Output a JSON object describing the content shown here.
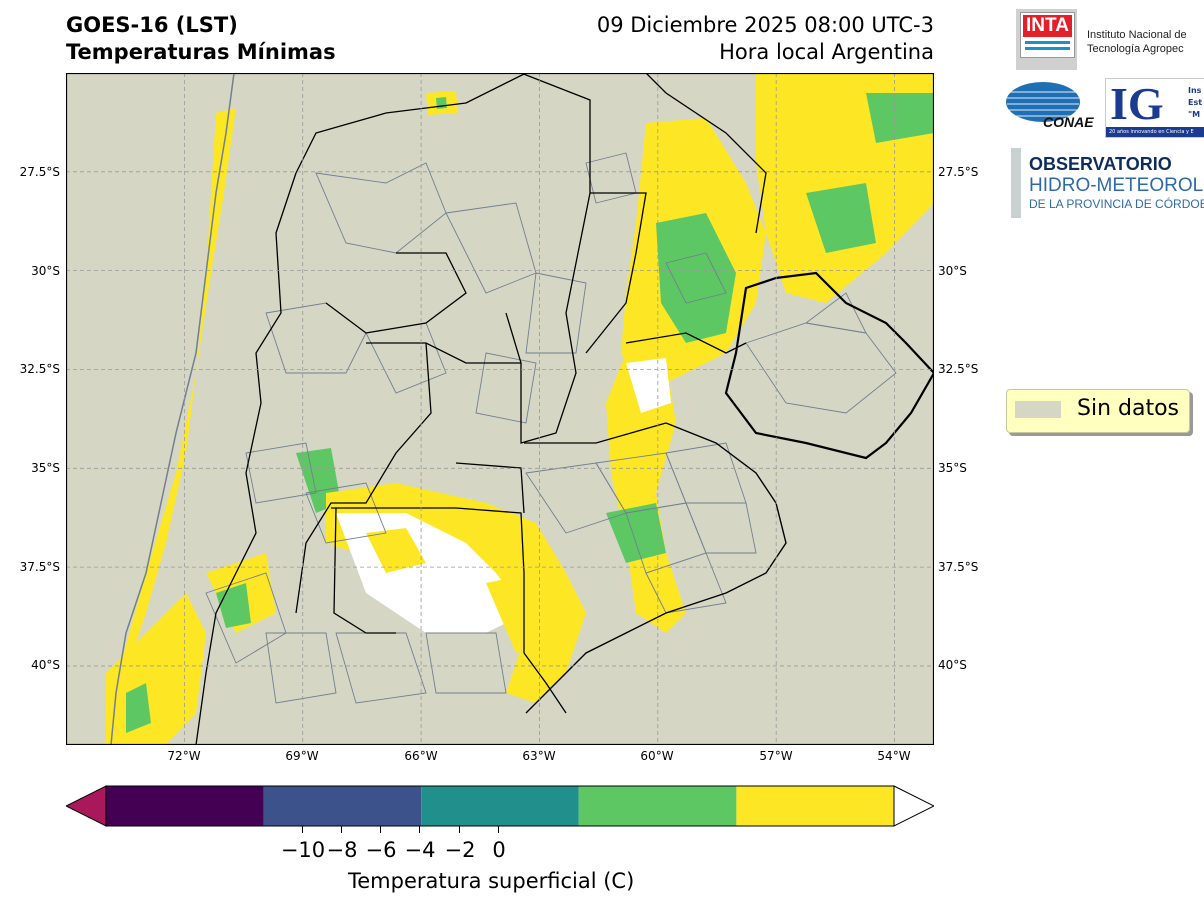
{
  "header": {
    "title_line1": "GOES-16 (LST)",
    "title_line2": "Temperaturas Mínimas",
    "date_line": "09 Diciembre 2025 08:00 UTC-3",
    "tz_line": "Hora local Argentina"
  },
  "map": {
    "background_color": "#d6d6c5",
    "gridline_color": "#999999",
    "lat_labels": [
      "27.5°S",
      "30°S",
      "32.5°S",
      "35°S",
      "37.5°S",
      "40°S"
    ],
    "lon_labels": [
      "72°W",
      "69°W",
      "66°W",
      "63°W",
      "60°W",
      "57°W",
      "54°W"
    ],
    "lat_values": [
      -27.5,
      -30,
      -32.5,
      -35,
      -37.5,
      -40
    ],
    "lon_values": [
      -72,
      -69,
      -66,
      -63,
      -60,
      -57,
      -54
    ],
    "lon_range": [
      -75,
      -53
    ],
    "lat_range": [
      -25,
      -42
    ]
  },
  "legend": {
    "label": "Sin datos",
    "swatch_color": "#d6d6c5"
  },
  "colorbar": {
    "bins": [
      {
        "color": "#440154"
      },
      {
        "color": "#3b528b"
      },
      {
        "color": "#21908d"
      },
      {
        "color": "#5dc863"
      },
      {
        "color": "#fde725"
      }
    ],
    "under_color": "#a8185a",
    "over_color": "#ffffff",
    "tick_values": [
      "−10",
      "−8",
      "−6",
      "−4",
      "−2",
      "0"
    ],
    "label": "Temperatura superficial (C)"
  },
  "logos": {
    "inta_text": "INTA",
    "inta_line1": "Instituto Nacional de",
    "inta_line2": "Tecnología Agropec",
    "conae_text": "CONAE",
    "ig_text": "IG",
    "ig_small1": "Ins",
    "ig_small2": "Est",
    "ig_small3": "\"M",
    "ig_tag": "20 años innovando en Ciencia y E",
    "obs_line1": "OBSERVATORIO",
    "obs_line2": "HIDRO-METEOROLÓG",
    "obs_line3": "DE LA PROVINCIA DE CÓRDOBA"
  }
}
